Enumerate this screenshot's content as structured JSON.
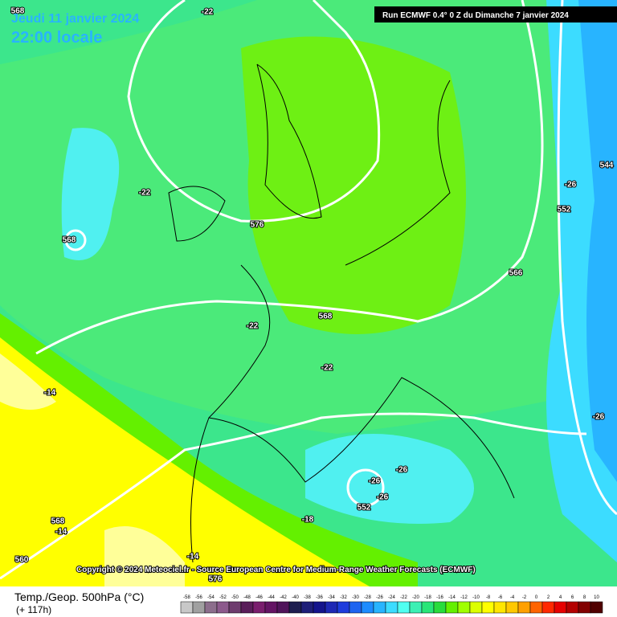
{
  "header": {
    "date": "Jeudi 11 janvier 2024",
    "time": "22:00 locale",
    "run": "Run ECMWF 0.4° 0 Z du Dimanche 7 janvier 2024"
  },
  "copyright": "Copyright © 2024 Meteociel.fr - Source European Centre for Medium-Range Weather Forecasts (ECMWF)",
  "footer": {
    "title": "Temp./Geop. 500hPa (°C)",
    "lead": "(+ 117h)"
  },
  "contour_labels": [
    "568",
    "-22",
    "-22",
    "568",
    "576",
    "-22",
    "568",
    "-22",
    "566",
    "-26",
    "552",
    "544",
    "-14",
    "-26",
    "-26",
    "-26",
    "552",
    "-18",
    "568",
    "-14",
    "560",
    "-14",
    "576",
    "-26"
  ],
  "legend": {
    "ticks": [
      -58,
      -56,
      -54,
      -52,
      -50,
      -48,
      -46,
      -44,
      -42,
      -40,
      -38,
      -36,
      -34,
      -32,
      -30,
      -28,
      -26,
      -24,
      -22,
      -20,
      -18,
      -16,
      -14,
      -12,
      -10,
      -8,
      -6,
      -4,
      -2,
      0,
      2,
      4,
      6,
      8,
      10
    ],
    "colors": [
      "#c8c8c8",
      "#a0a0a0",
      "#8c6e8c",
      "#8c5a8c",
      "#6e3c6e",
      "#5a1e5a",
      "#7a1e6e",
      "#641464",
      "#50145a",
      "#1e1e50",
      "#1e1e78",
      "#14148c",
      "#1e28b4",
      "#1e3cdc",
      "#1e64f0",
      "#1e8cff",
      "#28b4ff",
      "#3cdcff",
      "#50fff0",
      "#3cf0b4",
      "#28e678",
      "#28dc3c",
      "#64f000",
      "#a0ff00",
      "#dcff00",
      "#ffff00",
      "#ffe600",
      "#ffc800",
      "#ffa000",
      "#ff6400",
      "#ff2800",
      "#e60000",
      "#b40000",
      "#820000",
      "#500000"
    ]
  }
}
